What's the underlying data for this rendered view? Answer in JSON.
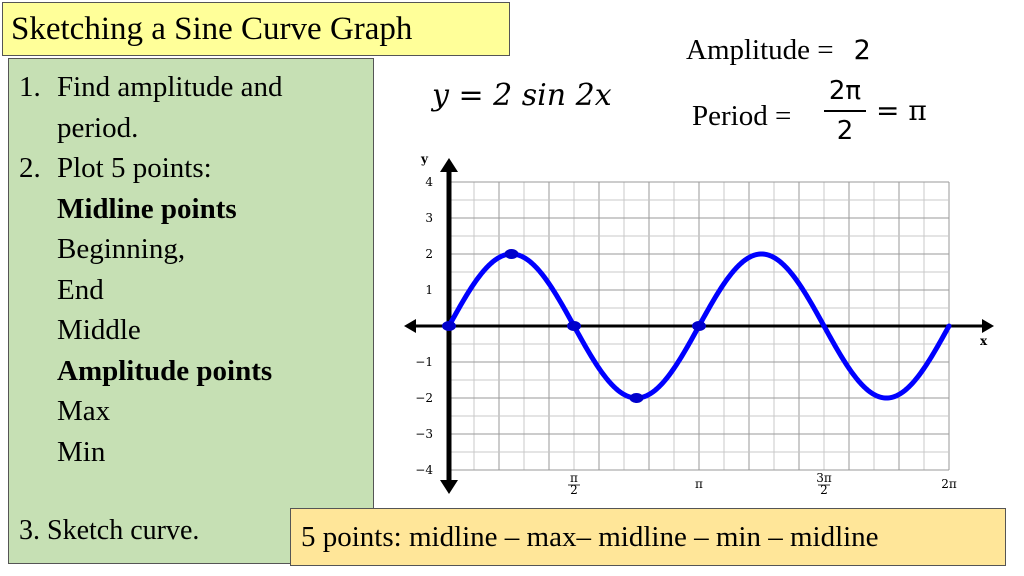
{
  "title": "Sketching a Sine Curve Graph",
  "steps": {
    "s1_num": "1.",
    "s1_line1": "Find amplitude and",
    "s1_line2": "period.",
    "s2_num": "2.",
    "s2_line1": "Plot 5 points:",
    "midline_heading": "Midline points",
    "beginning": "Beginning,",
    "end": "End",
    "middle": "Middle",
    "amplitude_heading": "Amplitude points",
    "max": "Max",
    "min": "Min",
    "s3": "3. Sketch curve."
  },
  "equation": "y = 2 sin 2x",
  "amplitude": {
    "label": "Amplitude =",
    "value": "2"
  },
  "period": {
    "label": "Period =",
    "numerator": "2π",
    "denominator": "2",
    "result": "= π"
  },
  "bottom_note": "5 points: midline – max– midline – min – midline",
  "chart_data": {
    "type": "line",
    "function": "y = 2 sin 2x",
    "series": [
      {
        "x": [
          0,
          0.3927,
          0.7854,
          1.1781,
          1.5708,
          1.9635,
          2.3562,
          2.7489,
          3.1416,
          3.5343,
          3.927,
          4.3197,
          4.7124,
          5.1051,
          5.4978,
          5.8905,
          6.2832
        ],
        "y": [
          0,
          1.414,
          2,
          1.414,
          0,
          -1.414,
          -2,
          -1.414,
          0,
          1.414,
          2,
          1.414,
          0,
          -1.414,
          -2,
          -1.414,
          0
        ],
        "color": "#0000ff"
      }
    ],
    "plotted_points": {
      "x": [
        0,
        0.7854,
        1.5708,
        2.3562,
        3.1416
      ],
      "y": [
        0,
        2,
        0,
        -2,
        0
      ]
    },
    "xlabel": "x",
    "ylabel": "y",
    "xlim": [
      0,
      6.2832
    ],
    "ylim": [
      -4,
      4
    ],
    "x_ticks": [
      {
        "value": 1.5708,
        "label": "π/2"
      },
      {
        "value": 3.1416,
        "label": "π"
      },
      {
        "value": 4.7124,
        "label": "3π/2"
      },
      {
        "value": 6.2832,
        "label": "2π"
      }
    ],
    "y_ticks": [
      {
        "value": 4,
        "label": "4"
      },
      {
        "value": 3,
        "label": "3"
      },
      {
        "value": 2,
        "label": "2"
      },
      {
        "value": 1,
        "label": "1"
      },
      {
        "value": -1,
        "label": "−1"
      },
      {
        "value": -2,
        "label": "−2"
      },
      {
        "value": -3,
        "label": "−3"
      },
      {
        "value": -4,
        "label": "−4"
      }
    ],
    "grid": true
  }
}
